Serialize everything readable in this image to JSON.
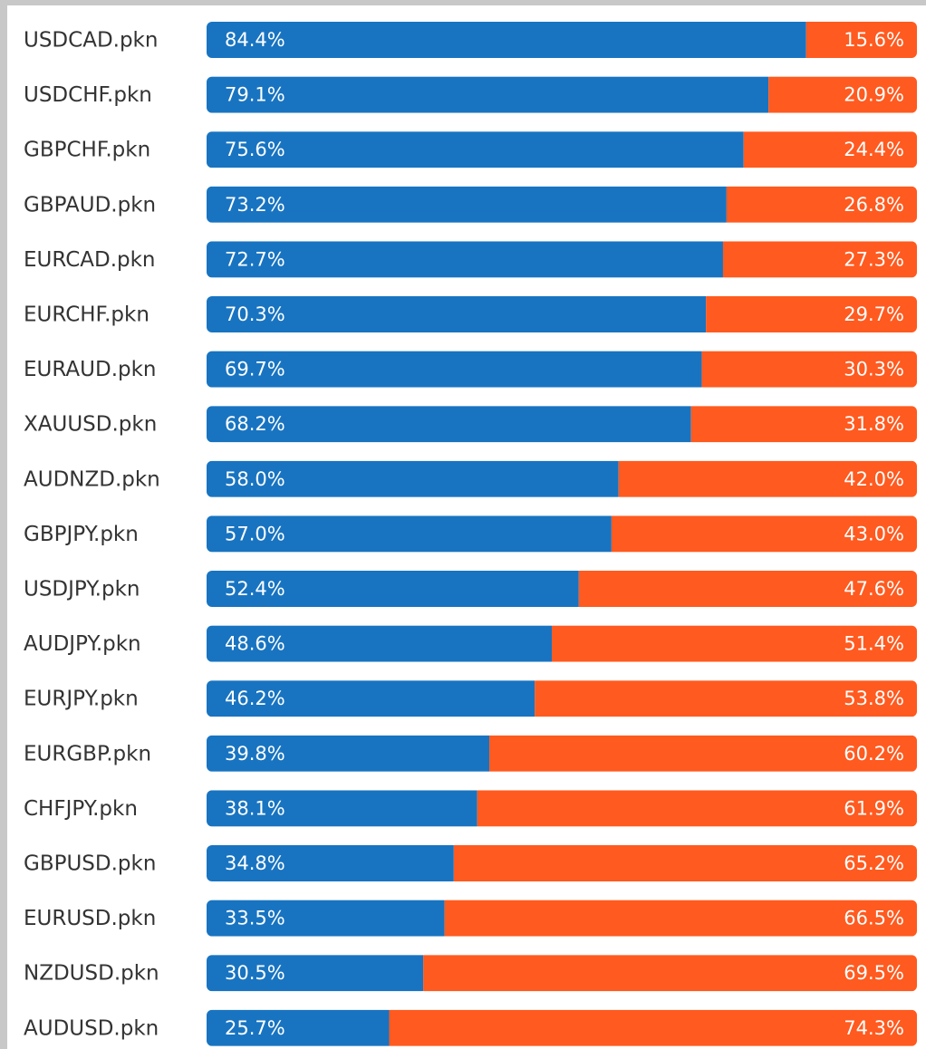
{
  "chart_data": {
    "type": "stacked-bar-horizontal",
    "categories": [
      "USDCAD.pkn",
      "USDCHF.pkn",
      "GBPCHF.pkn",
      "GBPAUD.pkn",
      "EURCAD.pkn",
      "EURCHF.pkn",
      "EURAUD.pkn",
      "XAUUSD.pkn",
      "AUDNZD.pkn",
      "GBPJPY.pkn",
      "USDJPY.pkn",
      "AUDJPY.pkn",
      "EURJPY.pkn",
      "EURGBP.pkn",
      "CHFJPY.pkn",
      "GBPUSD.pkn",
      "EURUSD.pkn",
      "NZDUSD.pkn",
      "AUDUSD.pkn"
    ],
    "series": [
      {
        "color": "#1874c1",
        "values": [
          84.4,
          79.1,
          75.6,
          73.2,
          72.7,
          70.3,
          69.7,
          68.2,
          58.0,
          57.0,
          52.4,
          48.6,
          46.2,
          39.8,
          38.1,
          34.8,
          33.5,
          30.5,
          25.7
        ],
        "value_labels": [
          "84.4%",
          "79.1%",
          "75.6%",
          "73.2%",
          "72.7%",
          "70.3%",
          "69.7%",
          "68.2%",
          "58.0%",
          "57.0%",
          "52.4%",
          "48.6%",
          "46.2%",
          "39.8%",
          "38.1%",
          "34.8%",
          "33.5%",
          "30.5%",
          "25.7%"
        ]
      },
      {
        "color": "#ff5a1f",
        "values": [
          15.6,
          20.9,
          24.4,
          26.8,
          27.3,
          29.7,
          30.3,
          31.8,
          42.0,
          43.0,
          47.6,
          51.4,
          53.8,
          60.2,
          61.9,
          65.2,
          66.5,
          69.5,
          74.3
        ],
        "value_labels": [
          "15.6%",
          "20.9%",
          "24.4%",
          "26.8%",
          "27.3%",
          "29.7%",
          "30.3%",
          "31.8%",
          "42.0%",
          "43.0%",
          "47.6%",
          "51.4%",
          "53.8%",
          "60.2%",
          "61.9%",
          "65.2%",
          "66.5%",
          "69.5%",
          "74.3%"
        ]
      }
    ],
    "xlim": [
      0,
      100
    ]
  }
}
